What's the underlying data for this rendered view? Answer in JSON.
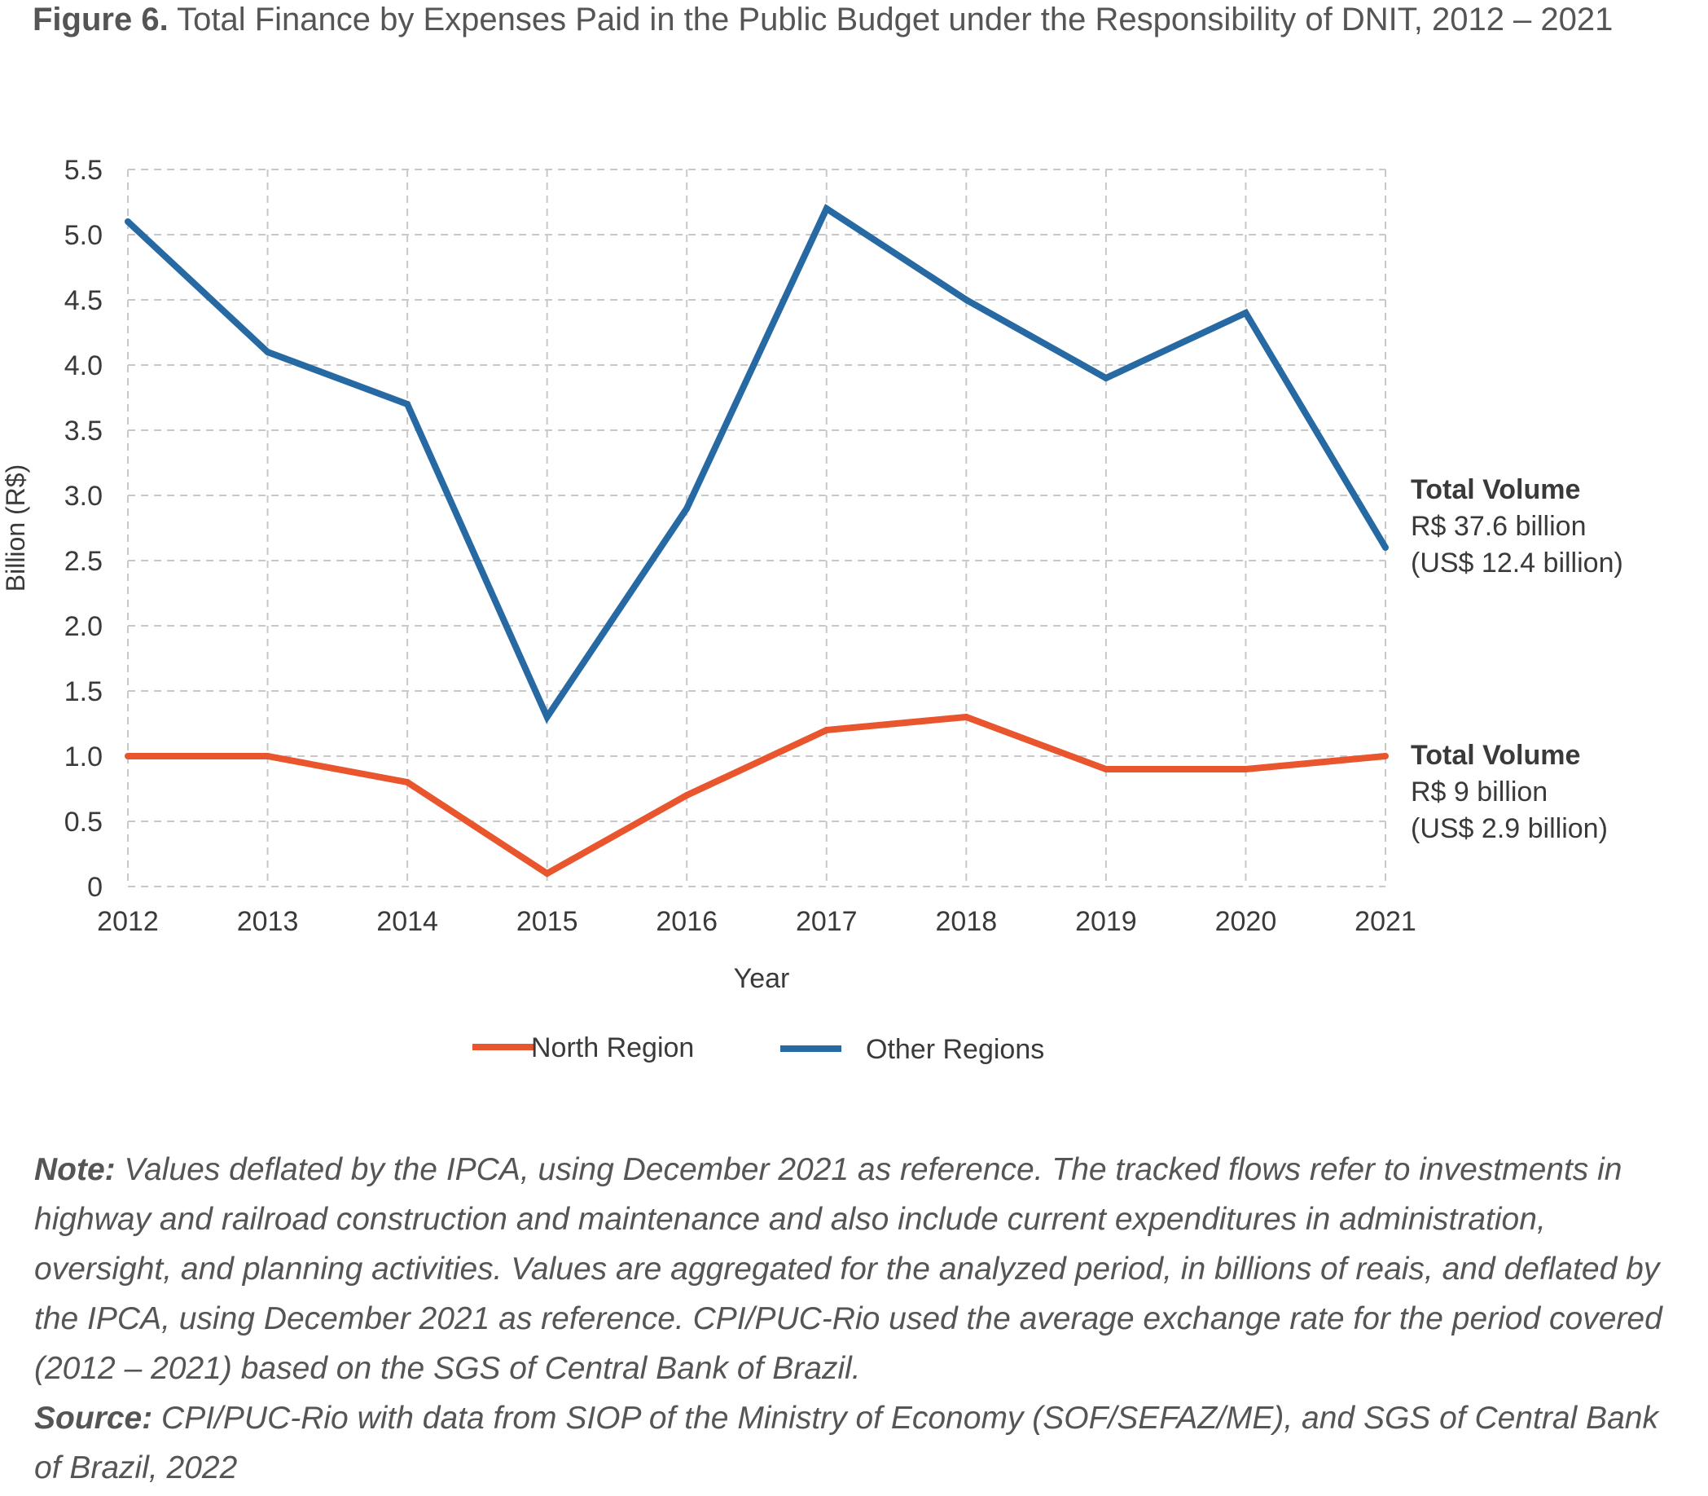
{
  "title": {
    "label": "Figure 6.",
    "text": "Total Finance by Expenses Paid in the Public Budget under the Responsibility of DNIT, 2012 – 2021"
  },
  "chart_data": {
    "type": "line",
    "title": "Total Finance by Expenses Paid in the Public Budget under the Responsibility of DNIT, 2012 – 2021",
    "xlabel": "Year",
    "ylabel": "Billion (R$)",
    "categories": [
      "2012",
      "2013",
      "2014",
      "2015",
      "2016",
      "2017",
      "2018",
      "2019",
      "2020",
      "2021"
    ],
    "ylim": [
      0,
      5.5
    ],
    "yticks": [
      "0",
      "0.5",
      "1.0",
      "1.5",
      "2.0",
      "2.5",
      "3.0",
      "3.5",
      "4.0",
      "4.5",
      "5.0",
      "5.5"
    ],
    "grid": true,
    "legend_position": "bottom",
    "series": [
      {
        "name": "North Region",
        "color": "#e9552d",
        "values": [
          1.0,
          1.0,
          0.8,
          0.1,
          0.7,
          1.2,
          1.3,
          0.9,
          0.9,
          1.0
        ],
        "annotation": [
          "Total Volume",
          "R$ 9 billion",
          "(US$ 2.9 billion)"
        ]
      },
      {
        "name": "Other Regions",
        "color": "#2669a3",
        "values": [
          5.1,
          4.1,
          3.7,
          1.3,
          2.9,
          5.2,
          4.5,
          3.9,
          4.4,
          2.6
        ],
        "annotation": [
          "Total Volume",
          "R$ 37.6 billion",
          "(US$ 12.4 billion)"
        ]
      }
    ]
  },
  "notes": {
    "note_label": "Note:",
    "note_text": " Values deflated by the IPCA, using December 2021 as reference. The tracked flows refer to investments in highway and railroad construction and maintenance and also include current expenditures in administration, oversight, and planning activities. Values are aggregated for the analyzed period, in billions of reais, and deflated by the IPCA, using December 2021 as reference. CPI/PUC-Rio used the average exchange rate for the period covered (2012 – 2021) based on the SGS of Central Bank of Brazil.",
    "source_label": "Source:",
    "source_text": " CPI/PUC-Rio with data from SIOP of the Ministry of Economy (SOF/SEFAZ/ME), and SGS of Central Bank of Brazil, 2022"
  }
}
